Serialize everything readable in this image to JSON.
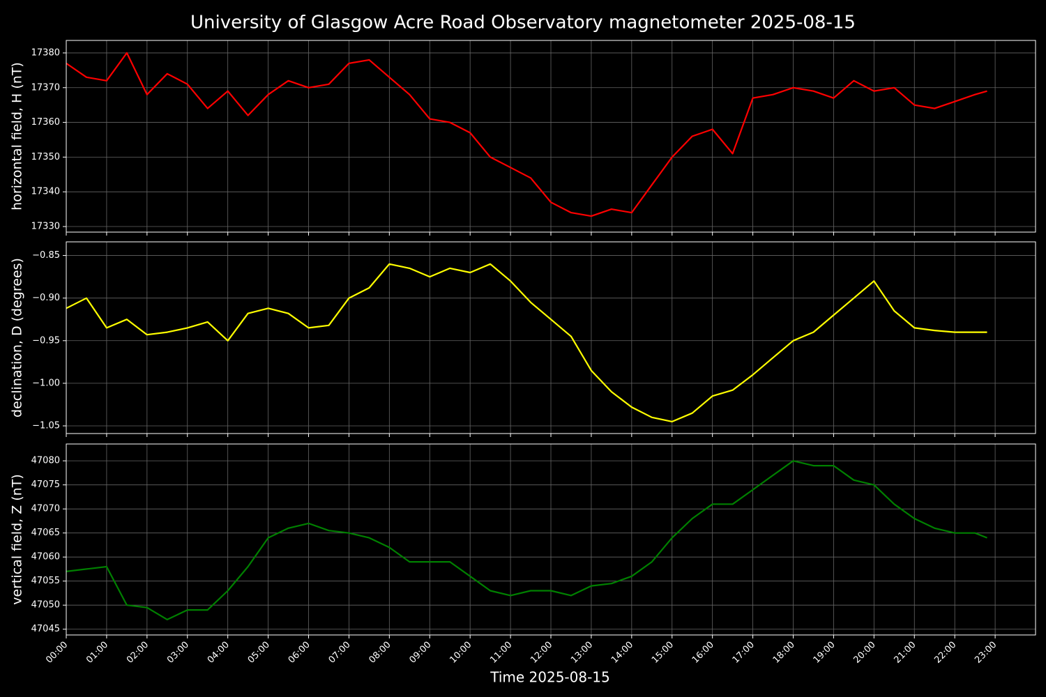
{
  "chart_data": [
    {
      "type": "line",
      "title": "University of Glasgow Acre Road Observatory magnetometer 2025-08-15",
      "y_label": "horizontal field, H (nT)",
      "x": [
        0,
        0.5,
        1,
        1.5,
        2,
        2.5,
        3,
        3.5,
        4,
        4.5,
        5,
        5.5,
        6,
        6.5,
        7,
        7.5,
        8,
        8.5,
        9,
        9.5,
        10,
        10.5,
        11,
        11.5,
        12,
        12.5,
        13,
        13.5,
        14,
        14.5,
        15,
        15.5,
        16,
        16.5,
        17,
        17.5,
        18,
        18.5,
        19,
        19.5,
        20,
        20.5,
        21,
        21.5,
        22,
        22.5,
        22.8
      ],
      "series": [
        {
          "name": "H",
          "color": "#ff0000",
          "values": [
            17377,
            17373,
            17372,
            17380,
            17368,
            17374,
            17371,
            17364,
            17369,
            17362,
            17368,
            17372,
            17370,
            17371,
            17377,
            17378,
            17373,
            17368,
            17361,
            17360,
            17357,
            17350,
            17347,
            17344,
            17337,
            17334,
            17333,
            17335,
            17334,
            17342,
            17350,
            17356,
            17358,
            17351,
            17367,
            17368,
            17370,
            17369,
            17367,
            17372,
            17369,
            17370,
            17365,
            17364,
            17366,
            17368,
            17369
          ]
        }
      ],
      "xlim": [
        0,
        24
      ],
      "xticks": [
        0,
        1,
        2,
        3,
        4,
        5,
        6,
        7,
        8,
        9,
        10,
        11,
        12,
        13,
        14,
        15,
        16,
        17,
        18,
        19,
        20,
        21,
        22,
        23
      ],
      "ylim": [
        17328.4,
        17383.6
      ],
      "yticks": [
        17330,
        17340,
        17350,
        17360,
        17370,
        17380
      ],
      "grid": true
    },
    {
      "type": "line",
      "y_label": "declination, D (degrees)",
      "x": [
        0,
        0.5,
        1,
        1.5,
        2,
        2.5,
        3,
        3.5,
        4,
        4.5,
        5,
        5.5,
        6,
        6.5,
        7,
        7.5,
        8,
        8.5,
        9,
        9.5,
        10,
        10.5,
        11,
        11.5,
        12,
        12.5,
        13,
        13.5,
        14,
        14.5,
        15,
        15.5,
        16,
        16.5,
        17,
        17.5,
        18,
        18.5,
        19,
        19.5,
        20,
        20.5,
        21,
        21.5,
        22,
        22.5,
        22.8
      ],
      "series": [
        {
          "name": "D",
          "color": "#ffff00",
          "values": [
            -0.912,
            -0.9,
            -0.935,
            -0.925,
            -0.943,
            -0.94,
            -0.935,
            -0.928,
            -0.95,
            -0.918,
            -0.912,
            -0.918,
            -0.935,
            -0.932,
            -0.9,
            -0.888,
            -0.86,
            -0.865,
            -0.875,
            -0.865,
            -0.87,
            -0.86,
            -0.88,
            -0.905,
            -0.925,
            -0.945,
            -0.985,
            -1.01,
            -1.028,
            -1.04,
            -1.045,
            -1.035,
            -1.015,
            -1.008,
            -0.99,
            -0.97,
            -0.95,
            -0.94,
            -0.92,
            -0.9,
            -0.88,
            -0.915,
            -0.935,
            -0.938,
            -0.94,
            -0.94,
            -0.94
          ]
        }
      ],
      "xlim": [
        0,
        24
      ],
      "xticks": [
        0,
        1,
        2,
        3,
        4,
        5,
        6,
        7,
        8,
        9,
        10,
        11,
        12,
        13,
        14,
        15,
        16,
        17,
        18,
        19,
        20,
        21,
        22,
        23
      ],
      "ylim": [
        -1.059,
        -0.834
      ],
      "yticks": [
        {
          "value": -1.05,
          "label": "−1.05"
        },
        {
          "value": -1.0,
          "label": "−1.00"
        },
        {
          "value": -0.95,
          "label": "−0.95"
        },
        {
          "value": -0.9,
          "label": "−0.90"
        },
        {
          "value": -0.85,
          "label": "−0.85"
        }
      ],
      "grid": true
    },
    {
      "type": "line",
      "y_label": "vertical field, Z (nT)",
      "x_label": "Time 2025-08-15",
      "x": [
        0,
        0.5,
        1,
        1.5,
        2,
        2.5,
        3,
        3.5,
        4,
        4.5,
        5,
        5.5,
        6,
        6.5,
        7,
        7.5,
        8,
        8.5,
        9,
        9.5,
        10,
        10.5,
        11,
        11.5,
        12,
        12.5,
        13,
        13.5,
        14,
        14.5,
        15,
        15.5,
        16,
        16.5,
        17,
        17.5,
        18,
        18.5,
        19,
        19.5,
        20,
        20.5,
        21,
        21.5,
        22,
        22.5,
        22.8
      ],
      "series": [
        {
          "name": "Z",
          "color": "#008000",
          "values": [
            47057,
            47057.5,
            47058,
            47050,
            47049.5,
            47047,
            47049,
            47049,
            47053,
            47058,
            47064,
            47066,
            47067,
            47065.5,
            47065,
            47064,
            47062,
            47059,
            47059,
            47059,
            47056,
            47053,
            47052,
            47053,
            47053,
            47052,
            47054,
            47054.5,
            47056,
            47059,
            47064,
            47068,
            47071,
            47071,
            47074,
            47077,
            47080,
            47079,
            47079,
            47076,
            47075,
            47071,
            47068,
            47066,
            47065,
            47065,
            47064
          ]
        }
      ],
      "xlim": [
        0,
        24
      ],
      "xticks": [
        {
          "value": 0,
          "label": "00:00"
        },
        {
          "value": 1,
          "label": "01:00"
        },
        {
          "value": 2,
          "label": "02:00"
        },
        {
          "value": 3,
          "label": "03:00"
        },
        {
          "value": 4,
          "label": "04:00"
        },
        {
          "value": 5,
          "label": "05:00"
        },
        {
          "value": 6,
          "label": "06:00"
        },
        {
          "value": 7,
          "label": "07:00"
        },
        {
          "value": 8,
          "label": "08:00"
        },
        {
          "value": 9,
          "label": "09:00"
        },
        {
          "value": 10,
          "label": "10:00"
        },
        {
          "value": 11,
          "label": "11:00"
        },
        {
          "value": 12,
          "label": "12:00"
        },
        {
          "value": 13,
          "label": "13:00"
        },
        {
          "value": 14,
          "label": "14:00"
        },
        {
          "value": 15,
          "label": "15:00"
        },
        {
          "value": 16,
          "label": "16:00"
        },
        {
          "value": 17,
          "label": "17:00"
        },
        {
          "value": 18,
          "label": "18:00"
        },
        {
          "value": 19,
          "label": "19:00"
        },
        {
          "value": 20,
          "label": "20:00"
        },
        {
          "value": 21,
          "label": "21:00"
        },
        {
          "value": 22,
          "label": "22:00"
        },
        {
          "value": 23,
          "label": "23:00"
        }
      ],
      "ylim": [
        47043.8,
        47083.5
      ],
      "yticks": [
        47045,
        47050,
        47055,
        47060,
        47065,
        47070,
        47075,
        47080
      ],
      "grid": true
    }
  ]
}
